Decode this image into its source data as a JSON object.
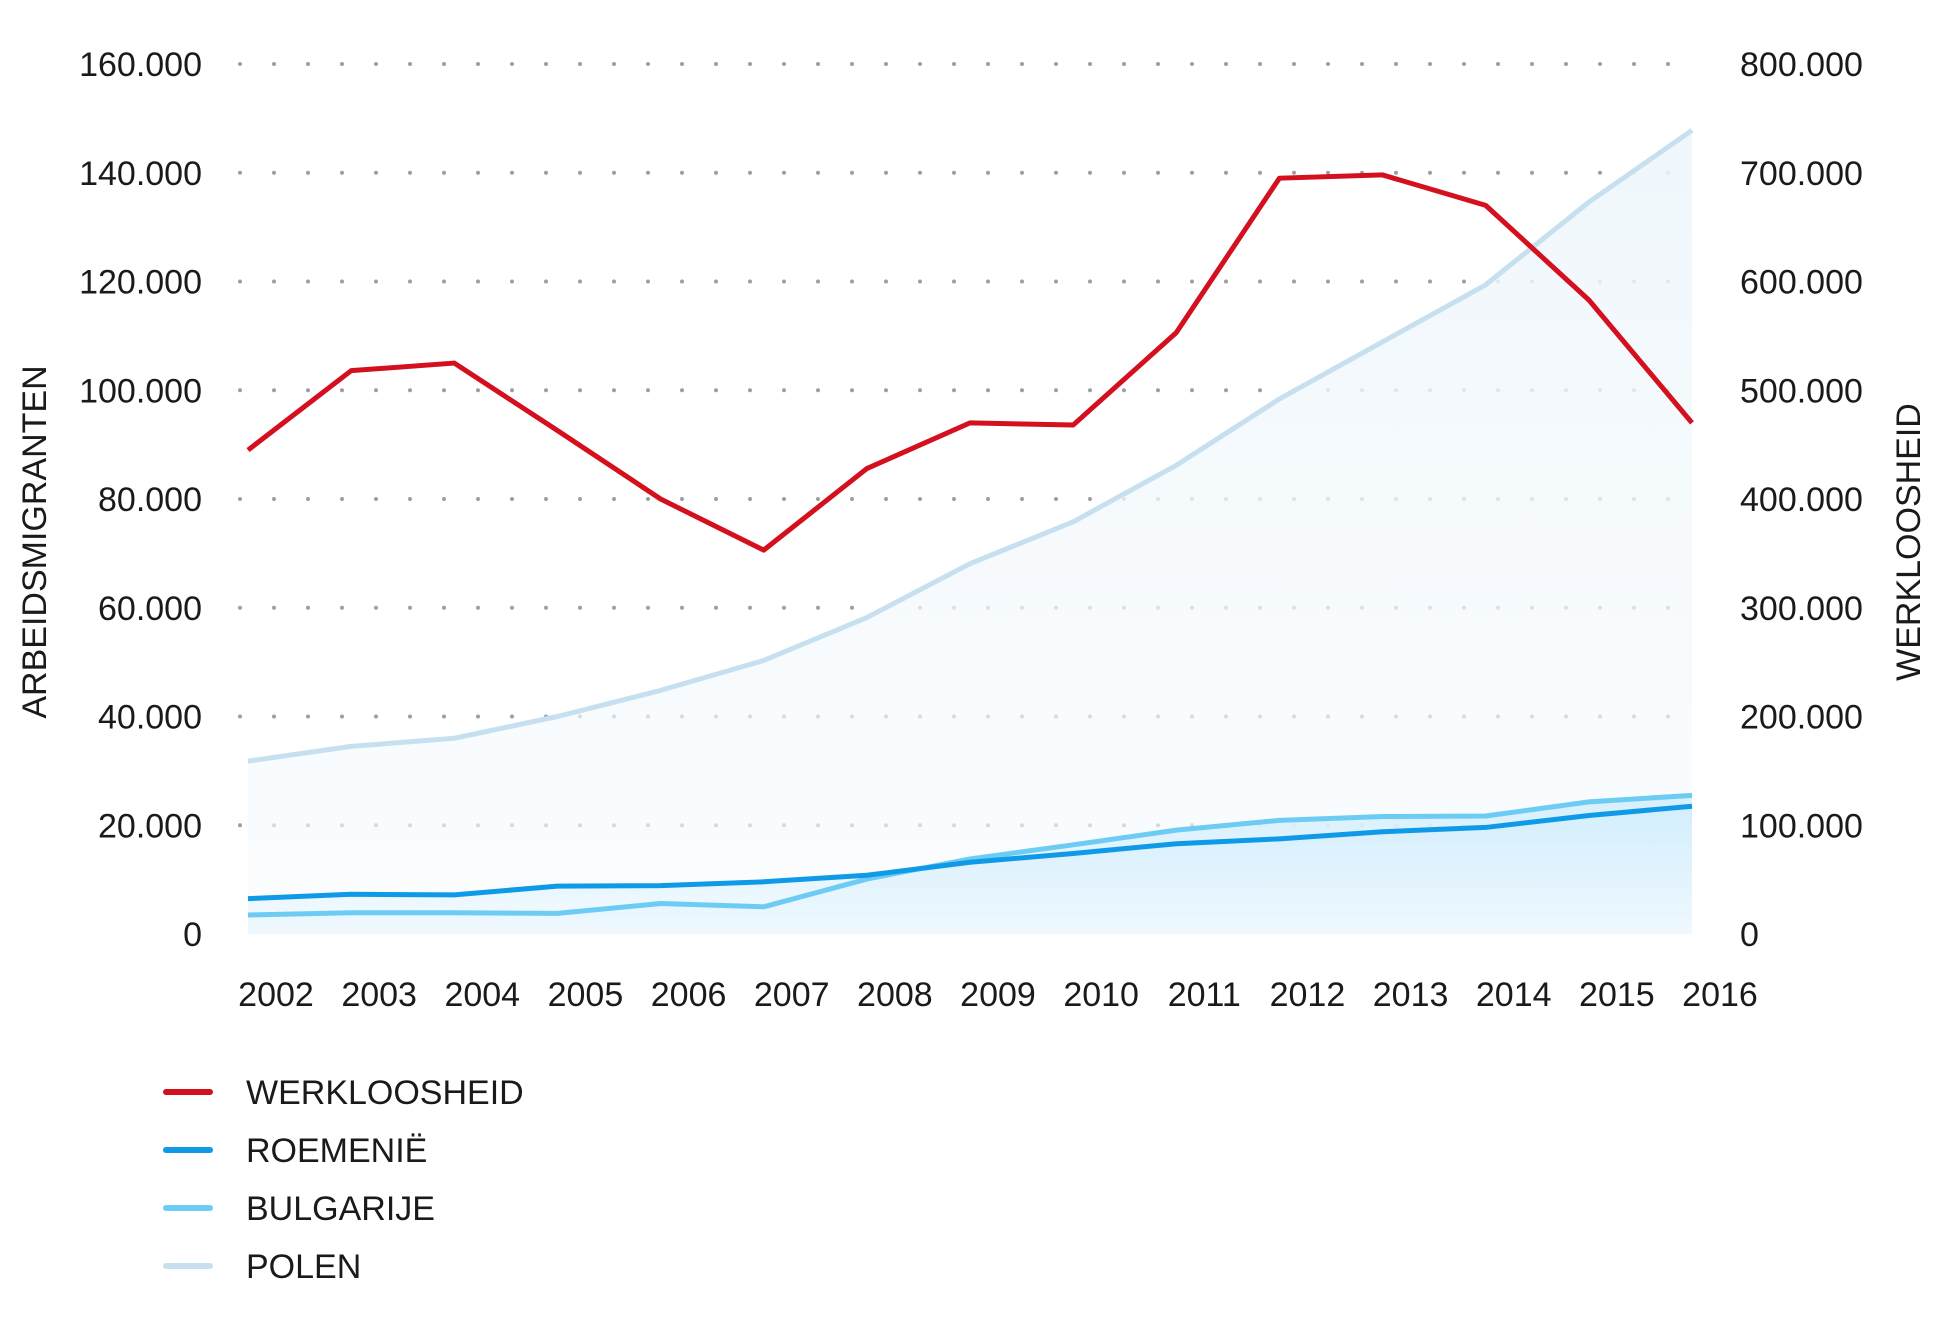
{
  "chart_data": {
    "type": "line",
    "categories": [
      "2002",
      "2003",
      "2004",
      "2005",
      "2006",
      "2007",
      "2008",
      "2009",
      "2010",
      "2011",
      "2012",
      "2013",
      "2014",
      "2015",
      "2016"
    ],
    "left_axis": {
      "label": "ARBEIDSMIGRANTEN",
      "ylim": [
        0,
        160000
      ],
      "ticks": [
        0,
        20000,
        40000,
        60000,
        80000,
        100000,
        120000,
        140000,
        160000
      ],
      "tick_labels": [
        "0",
        "20.000",
        "40.000",
        "60.000",
        "80.000",
        "100.000",
        "120.000",
        "140.000",
        "160.000"
      ]
    },
    "right_axis": {
      "label": "WERKLOOSHEID",
      "ylim": [
        0,
        800000
      ],
      "ticks": [
        0,
        100000,
        200000,
        300000,
        400000,
        500000,
        600000,
        700000,
        800000
      ],
      "tick_labels": [
        "0",
        "100.000",
        "200.000",
        "300.000",
        "400.000",
        "500.000",
        "600.000",
        "700.000",
        "800.000"
      ]
    },
    "series": [
      {
        "name": "WERKLOOSHEID",
        "axis": "right",
        "color": "#d40f1e",
        "values": [
          445000,
          518000,
          525000,
          463000,
          400000,
          353000,
          428000,
          470000,
          468000,
          553000,
          695000,
          698000,
          670000,
          583000,
          470000
        ]
      },
      {
        "name": "ROEMENIË",
        "axis": "left",
        "color": "#0f9ae8",
        "values": [
          6500,
          7300,
          7200,
          8800,
          8900,
          9600,
          10800,
          13200,
          14800,
          16600,
          17500,
          18800,
          19600,
          21800,
          23500
        ]
      },
      {
        "name": "BULGARIJE",
        "axis": "left",
        "color": "#6dccf4",
        "values": [
          3500,
          3900,
          3900,
          3800,
          5600,
          5000,
          10100,
          13800,
          16400,
          19100,
          20900,
          21600,
          21700,
          24300,
          25500
        ]
      },
      {
        "name": "POLEN",
        "axis": "left",
        "color": "#c7e0f0",
        "values": [
          31800,
          34500,
          36000,
          40000,
          44800,
          50300,
          58200,
          68100,
          75800,
          86200,
          98400,
          108900,
          119400,
          134600,
          147800
        ]
      }
    ],
    "grid": true,
    "legend_position": "bottom-left"
  }
}
